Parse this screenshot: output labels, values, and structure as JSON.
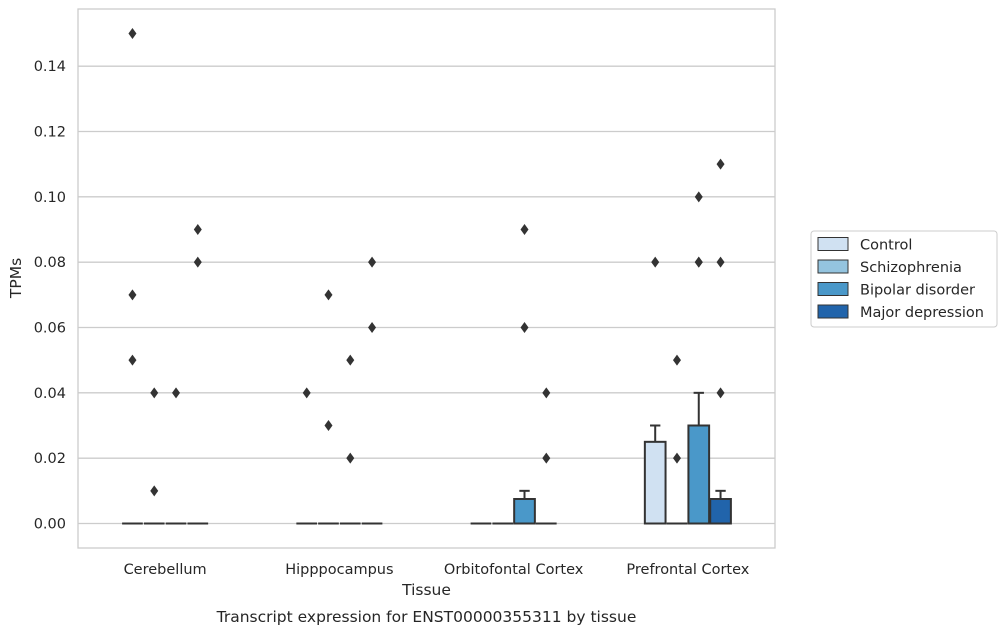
{
  "chart_data": {
    "type": "box",
    "xlabel": "Tissue",
    "ylabel": "TPMs",
    "caption": "Transcript expression for ENST00000355311 by tissue",
    "categories": [
      "Cerebellum",
      "Hipppocampus",
      "Orbitofontal Cortex",
      "Prefrontal Cortex"
    ],
    "yticks": [
      "0.00",
      "0.02",
      "0.04",
      "0.06",
      "0.08",
      "0.10",
      "0.12",
      "0.14"
    ],
    "ytick_values": [
      0,
      0.02,
      0.04,
      0.06,
      0.08,
      0.1,
      0.12,
      0.14
    ],
    "ylim": [
      -0.0075,
      0.1575
    ],
    "grid": "horizontal",
    "legend_position": "right",
    "series": [
      {
        "name": "Control",
        "color": "#d0e1f2",
        "boxes": [
          {
            "q1": 0,
            "median": 0,
            "q3": 0,
            "whisker_low": 0,
            "whisker_high": 0,
            "outliers": [
              0.15,
              0.07,
              0.05
            ]
          },
          {
            "q1": 0,
            "median": 0,
            "q3": 0,
            "whisker_low": 0,
            "whisker_high": 0,
            "outliers": [
              0.04
            ]
          },
          {
            "q1": 0,
            "median": 0,
            "q3": 0,
            "whisker_low": 0,
            "whisker_high": 0,
            "outliers": []
          },
          {
            "q1": 0,
            "median": 0,
            "q3": 0.025,
            "whisker_low": 0,
            "whisker_high": 0.03,
            "outliers": [
              0.08
            ]
          }
        ]
      },
      {
        "name": "Schizophrenia",
        "color": "#94c4df",
        "boxes": [
          {
            "q1": 0,
            "median": 0,
            "q3": 0,
            "whisker_low": 0,
            "whisker_high": 0,
            "outliers": [
              0.04,
              0.01
            ]
          },
          {
            "q1": 0,
            "median": 0,
            "q3": 0,
            "whisker_low": 0,
            "whisker_high": 0,
            "outliers": [
              0.07,
              0.03
            ]
          },
          {
            "q1": 0,
            "median": 0,
            "q3": 0,
            "whisker_low": 0,
            "whisker_high": 0,
            "outliers": []
          },
          {
            "q1": 0,
            "median": 0,
            "q3": 0,
            "whisker_low": 0,
            "whisker_high": 0,
            "outliers": [
              0.05,
              0.02
            ]
          }
        ]
      },
      {
        "name": "Bipolar disorder",
        "color": "#4a98c9",
        "boxes": [
          {
            "q1": 0,
            "median": 0,
            "q3": 0,
            "whisker_low": 0,
            "whisker_high": 0,
            "outliers": [
              0.04
            ]
          },
          {
            "q1": 0,
            "median": 0,
            "q3": 0,
            "whisker_low": 0,
            "whisker_high": 0,
            "outliers": [
              0.05,
              0.02
            ]
          },
          {
            "q1": 0,
            "median": 0,
            "q3": 0.0075,
            "whisker_low": 0,
            "whisker_high": 0.01,
            "outliers": [
              0.09,
              0.06
            ]
          },
          {
            "q1": 0,
            "median": 0,
            "q3": 0.03,
            "whisker_low": 0,
            "whisker_high": 0.04,
            "outliers": [
              0.1,
              0.08,
              0.08
            ]
          }
        ]
      },
      {
        "name": "Major depression",
        "color": "#2164ab",
        "boxes": [
          {
            "q1": 0,
            "median": 0,
            "q3": 0,
            "whisker_low": 0,
            "whisker_high": 0,
            "outliers": [
              0.09,
              0.08
            ]
          },
          {
            "q1": 0,
            "median": 0,
            "q3": 0,
            "whisker_low": 0,
            "whisker_high": 0,
            "outliers": [
              0.08,
              0.06
            ]
          },
          {
            "q1": 0,
            "median": 0,
            "q3": 0,
            "whisker_low": 0,
            "whisker_high": 0,
            "outliers": [
              0.04,
              0.02
            ]
          },
          {
            "q1": 0,
            "median": 0,
            "q3": 0.0075,
            "whisker_low": 0,
            "whisker_high": 0.01,
            "outliers": [
              0.11,
              0.08,
              0.04
            ]
          }
        ]
      }
    ]
  }
}
